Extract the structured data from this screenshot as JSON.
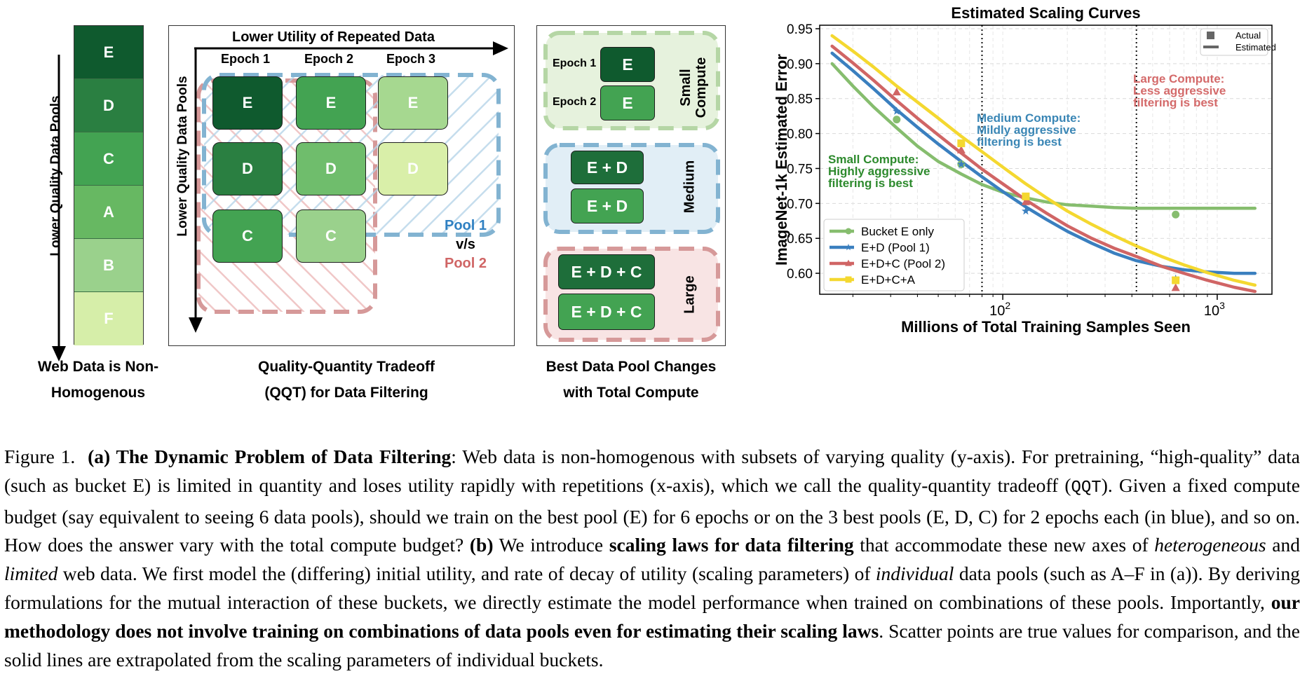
{
  "panel_a": {
    "buckets": [
      {
        "label": "E",
        "color": "#0f5a2e"
      },
      {
        "label": "D",
        "color": "#2a7f41"
      },
      {
        "label": "C",
        "color": "#43a352"
      },
      {
        "label": "A",
        "color": "#67b862"
      },
      {
        "label": "B",
        "color": "#9ad18c"
      },
      {
        "label": "F",
        "color": "#d6eea9"
      }
    ],
    "axis_label": "Lower Quality Data Pools",
    "caption_line1": "Web Data is Non-",
    "caption_line2": "Homogenous"
  },
  "panel_qqt": {
    "top_axis_label": "Lower Utility of Repeated Data",
    "side_axis_label": "Lower Quality Data Pools",
    "epochs": [
      "Epoch 1",
      "Epoch 2",
      "Epoch 3"
    ],
    "rows": [
      {
        "label": "E",
        "colors": [
          "#0f5a2e",
          "#43a352",
          "#a6d890"
        ]
      },
      {
        "label": "D",
        "colors": [
          "#2a7f41",
          "#6fbd6c",
          "#d9efa9"
        ]
      },
      {
        "label": "C",
        "colors": [
          "#43a352",
          "#9ad18c"
        ]
      }
    ],
    "pool1": "Pool 1",
    "vs": "v/s",
    "pool2": "Pool 2",
    "caption_line1": "Quality-Quantity Tradeoff",
    "caption_line2": "(QQT) for Data Filtering"
  },
  "panel_best": {
    "small": {
      "label": "Small Compute",
      "rows": [
        {
          "epoch": "Epoch 1",
          "text": "E"
        },
        {
          "epoch": "Epoch 2",
          "text": "E"
        }
      ]
    },
    "medium": {
      "label": "Medium",
      "rows": [
        "E + D",
        "E + D"
      ]
    },
    "large": {
      "label": "Large",
      "rows": [
        "E + D + C",
        "E + D + C"
      ]
    },
    "caption_line1": "Best Data Pool Changes",
    "caption_line2": "with Total Compute"
  },
  "chart_data": {
    "type": "line",
    "title": "Estimated Scaling Curves",
    "xlabel": "Millions of Total Training Samples Seen",
    "ylabel": "ImageNet-1k Estimated Error",
    "xscale": "log",
    "xlim": [
      14,
      1800
    ],
    "ylim": [
      0.57,
      0.955
    ],
    "xticks": [
      {
        "value": 100,
        "label": "10",
        "sup": "2"
      },
      {
        "value": 1000,
        "label": "10",
        "sup": "3"
      }
    ],
    "yticks": [
      0.6,
      0.65,
      0.7,
      0.75,
      0.8,
      0.85,
      0.9,
      0.95
    ],
    "ytick_labels": [
      "0.60",
      "0.65",
      "0.70",
      "0.75",
      "0.80",
      "0.85",
      "0.90",
      "0.95"
    ],
    "grid": true,
    "vlines": [
      80,
      420
    ],
    "marker_legend": {
      "actual": "Actual",
      "estimated": "Estimated"
    },
    "annotations": [
      {
        "lines": [
          "Small Compute:",
          "Highly aggressive",
          "filtering is best"
        ],
        "color": "#2d8a2d"
      },
      {
        "lines": [
          "Medium Compute:",
          "Mildly aggressive",
          "filtering is best"
        ],
        "color": "#3a86b5"
      },
      {
        "lines": [
          "Large Compute:",
          "Less aggressive",
          "filtering is best"
        ],
        "color": "#d46a6a"
      }
    ],
    "series": [
      {
        "name": "Bucket E only",
        "color": "#86bd6e",
        "marker": "circle",
        "x": [
          16,
          20,
          25,
          32,
          40,
          50,
          64,
          80,
          100,
          128,
          160,
          200,
          260,
          330,
          420,
          550,
          700,
          900,
          1200,
          1500
        ],
        "y": [
          0.9,
          0.868,
          0.838,
          0.808,
          0.782,
          0.76,
          0.742,
          0.727,
          0.716,
          0.708,
          0.702,
          0.698,
          0.696,
          0.694,
          0.693,
          0.693,
          0.693,
          0.693,
          0.693,
          0.693
        ],
        "points": [
          {
            "x": 32,
            "y": 0.82
          },
          {
            "x": 64,
            "y": 0.756
          },
          {
            "x": 640,
            "y": 0.684
          }
        ]
      },
      {
        "name": "E+D (Pool 1)",
        "color": "#3a7fbf",
        "marker": "star",
        "x": [
          16,
          20,
          25,
          32,
          40,
          50,
          64,
          80,
          100,
          128,
          160,
          200,
          260,
          330,
          420,
          550,
          700,
          900,
          1200,
          1500
        ],
        "y": [
          0.915,
          0.89,
          0.864,
          0.834,
          0.809,
          0.785,
          0.76,
          0.738,
          0.717,
          0.695,
          0.677,
          0.66,
          0.643,
          0.629,
          0.618,
          0.61,
          0.605,
          0.602,
          0.6,
          0.6
        ],
        "points": [
          {
            "x": 32,
            "y": 0.832
          },
          {
            "x": 64,
            "y": 0.756
          },
          {
            "x": 128,
            "y": 0.689
          },
          {
            "x": 640,
            "y": 0.592
          }
        ]
      },
      {
        "name": "E+D+C (Pool 2)",
        "color": "#d06565",
        "marker": "triangle",
        "x": [
          16,
          20,
          25,
          32,
          40,
          50,
          64,
          80,
          100,
          128,
          160,
          200,
          260,
          330,
          420,
          550,
          700,
          900,
          1200,
          1500
        ],
        "y": [
          0.925,
          0.901,
          0.876,
          0.847,
          0.822,
          0.798,
          0.772,
          0.749,
          0.728,
          0.705,
          0.686,
          0.668,
          0.65,
          0.636,
          0.624,
          0.61,
          0.6,
          0.59,
          0.58,
          0.574
        ],
        "points": [
          {
            "x": 32,
            "y": 0.859
          },
          {
            "x": 64,
            "y": 0.776
          },
          {
            "x": 128,
            "y": 0.702
          },
          {
            "x": 640,
            "y": 0.579
          }
        ]
      },
      {
        "name": "E+D+C+A",
        "color": "#f4d830",
        "marker": "square",
        "x": [
          16,
          20,
          25,
          32,
          40,
          50,
          64,
          80,
          100,
          128,
          160,
          200,
          260,
          330,
          420,
          550,
          700,
          900,
          1200,
          1500
        ],
        "y": [
          0.94,
          0.918,
          0.895,
          0.868,
          0.845,
          0.822,
          0.796,
          0.774,
          0.752,
          0.728,
          0.708,
          0.689,
          0.67,
          0.654,
          0.639,
          0.624,
          0.612,
          0.601,
          0.59,
          0.583
        ],
        "points": [
          {
            "x": 64,
            "y": 0.786
          },
          {
            "x": 128,
            "y": 0.71
          },
          {
            "x": 640,
            "y": 0.59
          }
        ]
      }
    ]
  },
  "caption": {
    "figure_label": "Figure 1.",
    "a_label": "(a) The Dynamic Problem of Data Filtering",
    "a_text_1": ": Web data is non-homogenous with subsets of varying quality (y-axis). For pretraining, “high-quality” data (such as bucket E) is limited in quantity and loses utility rapidly with repetitions (x-axis), which we call the quality-quantity tradeoff (",
    "qqt": "QQT",
    "a_text_2": "). Given a fixed compute budget (say equivalent to seeing 6 data pools), should we train on the best pool (E) for 6 epochs or on the 3 best pools (E, D, C) for 2 epochs each (in blue), and so on. How does the answer vary with the total compute budget?",
    "b_label": "(b)",
    "b_text_1": " We introduce ",
    "b_bold_1": "scaling laws for data filtering",
    "b_text_2": " that accommodate these new axes of ",
    "b_ital_1": "heterogeneous",
    "b_text_3": " and ",
    "b_ital_2": "limited",
    "b_text_4": " web data. We first model the (differing) initial utility, and rate of decay of utility (scaling parameters) of ",
    "b_ital_3": "individual",
    "b_text_5": " data pools (such as A–F in (a)). By deriving formulations for the mutual interaction of these buckets, we directly estimate the model performance when trained on combinations of these pools. Importantly, ",
    "b_bold_2": "our methodology does not involve training on combinations of data pools even for estimating their scaling laws",
    "b_text_6": ". Scatter points are true values for comparison, and the solid lines are extrapolated from the scaling parameters of individual buckets."
  }
}
